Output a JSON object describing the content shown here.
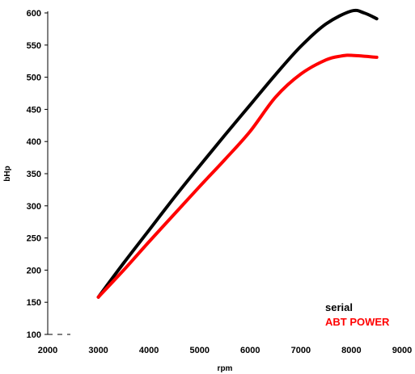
{
  "chart_data": {
    "type": "line",
    "title": "",
    "xlabel": "rpm",
    "ylabel": "bHp",
    "xlim": [
      2000,
      9000
    ],
    "ylim": [
      100,
      600
    ],
    "xticks": [
      2000,
      3000,
      4000,
      5000,
      6000,
      7000,
      8000,
      9000
    ],
    "yticks": [
      100,
      150,
      200,
      250,
      300,
      350,
      400,
      450,
      500,
      550,
      600
    ],
    "grid": false,
    "legend_position": "bottom-right",
    "series": [
      {
        "name": "serial",
        "color": "#000000",
        "points": [
          [
            3000,
            158
          ],
          [
            3500,
            211
          ],
          [
            4000,
            262
          ],
          [
            4500,
            313
          ],
          [
            5000,
            362
          ],
          [
            5500,
            410
          ],
          [
            6000,
            457
          ],
          [
            6500,
            504
          ],
          [
            7000,
            548
          ],
          [
            7500,
            583
          ],
          [
            8000,
            603
          ],
          [
            8250,
            600
          ],
          [
            8500,
            591
          ]
        ]
      },
      {
        "name": "ABT POWER",
        "color": "#ff0000",
        "points": [
          [
            3000,
            158
          ],
          [
            3500,
            200
          ],
          [
            4000,
            244
          ],
          [
            4500,
            287
          ],
          [
            5000,
            330
          ],
          [
            5500,
            372
          ],
          [
            6000,
            416
          ],
          [
            6500,
            469
          ],
          [
            7000,
            505
          ],
          [
            7500,
            527
          ],
          [
            7800,
            533
          ],
          [
            8000,
            534
          ],
          [
            8500,
            531
          ]
        ]
      }
    ]
  }
}
